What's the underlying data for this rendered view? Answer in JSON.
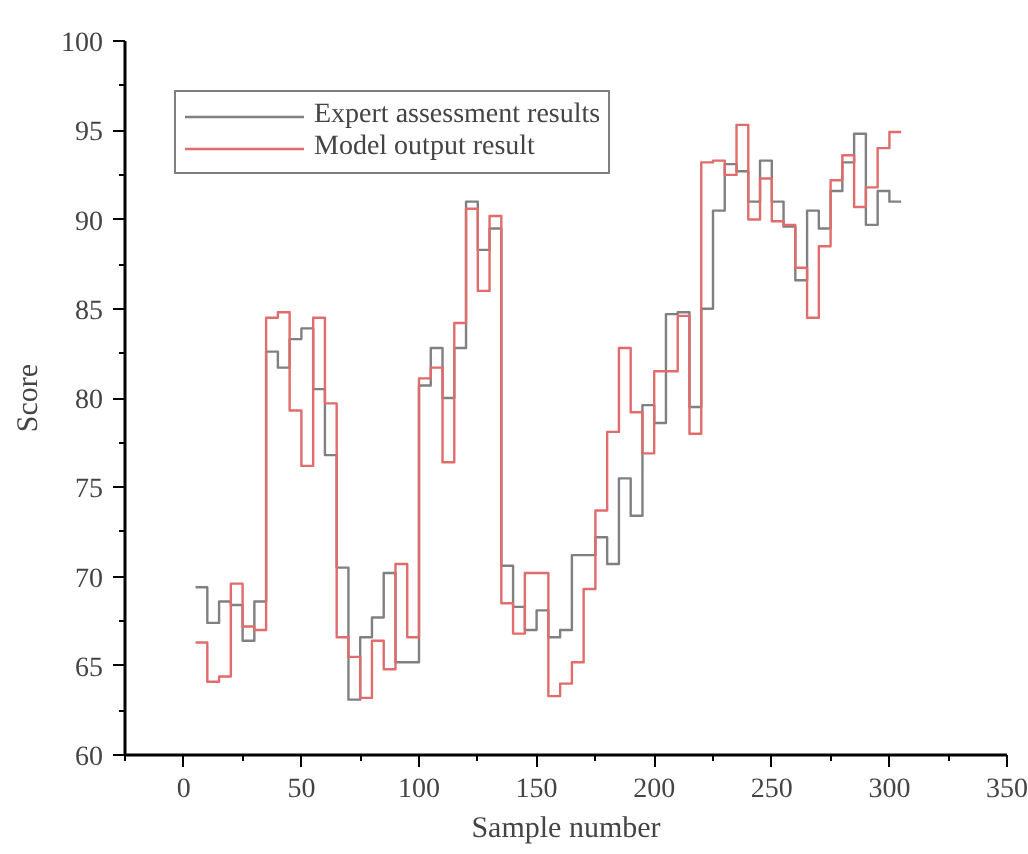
{
  "chart_data": {
    "type": "step",
    "xlabel": "Sample number",
    "ylabel": "Score",
    "x": [
      5,
      10,
      15,
      20,
      25,
      30,
      35,
      40,
      45,
      50,
      55,
      60,
      65,
      70,
      75,
      80,
      85,
      90,
      95,
      100,
      105,
      110,
      115,
      120,
      125,
      130,
      135,
      140,
      145,
      150,
      155,
      160,
      165,
      170,
      175,
      180,
      185,
      190,
      195,
      200,
      205,
      210,
      215,
      220,
      225,
      230,
      235,
      240,
      245,
      250,
      255,
      260,
      265,
      270,
      275,
      280,
      285,
      290,
      295,
      300,
      305
    ],
    "series": [
      {
        "name": "Expert assessment results",
        "color": "#808080",
        "values": [
          69.4,
          67.4,
          68.6,
          68.4,
          66.4,
          68.6,
          82.6,
          81.7,
          83.3,
          83.9,
          80.5,
          76.8,
          70.5,
          63.1,
          66.6,
          67.7,
          70.2,
          65.2,
          65.2,
          80.7,
          82.8,
          80.0,
          82.8,
          91.0,
          88.3,
          89.5,
          70.6,
          68.3,
          67.0,
          68.1,
          66.6,
          67.0,
          71.2,
          71.2,
          72.2,
          70.7,
          75.5,
          73.4,
          79.6,
          78.6,
          84.7,
          84.8,
          79.5,
          85.0,
          90.5,
          93.1,
          92.7,
          91.0,
          93.3,
          91.0,
          89.6,
          86.6,
          90.5,
          89.5,
          91.6,
          93.2,
          94.8,
          89.7,
          91.6,
          91.0,
          91.0
        ]
      },
      {
        "name": "Model output result",
        "color": "#e06c6c",
        "values": [
          66.3,
          64.1,
          64.4,
          69.6,
          67.2,
          67.0,
          84.5,
          84.8,
          79.3,
          76.2,
          84.5,
          79.7,
          66.6,
          65.5,
          63.2,
          66.4,
          64.8,
          70.7,
          66.6,
          81.1,
          81.7,
          76.4,
          84.2,
          90.6,
          86.0,
          90.2,
          68.5,
          66.8,
          70.2,
          70.2,
          63.3,
          64.0,
          65.2,
          69.3,
          73.7,
          78.1,
          82.8,
          79.2,
          76.9,
          81.5,
          81.5,
          84.6,
          78.0,
          93.2,
          93.3,
          92.5,
          95.3,
          90.0,
          92.3,
          89.9,
          89.7,
          87.3,
          84.5,
          88.5,
          92.2,
          93.6,
          90.7,
          91.8,
          94.0,
          94.9,
          94.9
        ]
      }
    ],
    "xlim": [
      -25,
      350
    ],
    "xticks": [
      0,
      50,
      100,
      150,
      200,
      250,
      300,
      350
    ],
    "ylim": [
      60,
      100
    ],
    "yticks": [
      60,
      65,
      70,
      75,
      80,
      85,
      90,
      95,
      100
    ],
    "legend": "top left",
    "grid": false
  }
}
